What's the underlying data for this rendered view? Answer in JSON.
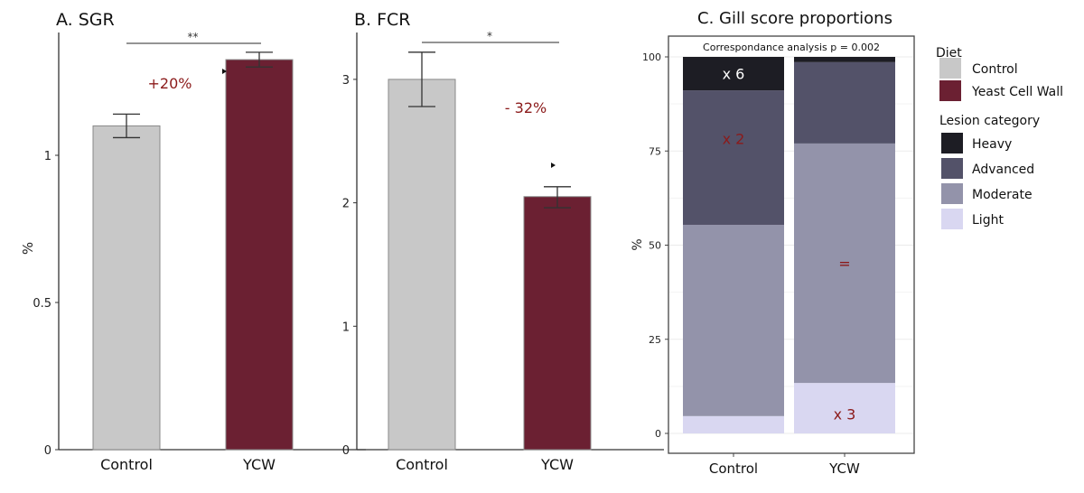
{
  "chart_data": [
    {
      "type": "bar",
      "title": "A. SGR",
      "ylabel": "%",
      "categories": [
        "Control",
        "YCW"
      ],
      "values": [
        1.1,
        1.325
      ],
      "error_low": [
        1.06,
        1.3
      ],
      "error_high": [
        1.14,
        1.35
      ],
      "ylim": [
        0,
        1.42
      ],
      "yticks": [
        "0",
        "0.5",
        "1"
      ],
      "ytick_values": [
        0,
        0.5,
        1
      ],
      "colors": [
        "#c8c8c8",
        "#6b2032"
      ],
      "significance": "**",
      "annotation": "+20%",
      "grid": false
    },
    {
      "type": "bar",
      "title": "B. FCR",
      "categories": [
        "Control",
        "YCW"
      ],
      "values": [
        3.0,
        2.05
      ],
      "error_low": [
        2.78,
        1.96
      ],
      "error_high": [
        3.22,
        2.13
      ],
      "ylim": [
        0,
        3.35
      ],
      "yticks": [
        "0",
        "1",
        "2",
        "3"
      ],
      "ytick_values": [
        0,
        1,
        2,
        3
      ],
      "colors": [
        "#c8c8c8",
        "#6b2032"
      ],
      "significance": "*",
      "annotation": "- 32%",
      "grid": false
    },
    {
      "type": "bar",
      "stacked": true,
      "title": "C. Gill score proportions",
      "ylabel": "%",
      "subtitle": "Correspondance analysis p = 0.002",
      "categories": [
        "Control",
        "YCW"
      ],
      "ylim": [
        0,
        100
      ],
      "yticks": [
        "0",
        "25",
        "50",
        "75",
        "100"
      ],
      "ytick_values": [
        0,
        25,
        50,
        75,
        100
      ],
      "series": [
        {
          "name": "Light",
          "values": [
            4.6,
            13.4
          ],
          "color": "#d9d7f1"
        },
        {
          "name": "Moderate",
          "values": [
            50.8,
            63.6
          ],
          "color": "#9393aa"
        },
        {
          "name": "Advanced",
          "values": [
            35.7,
            21.6
          ],
          "color": "#535269"
        },
        {
          "name": "Heavy",
          "values": [
            8.9,
            1.4
          ],
          "color": "#1d1d24"
        }
      ],
      "annotations": [
        {
          "text": "x 6",
          "category": "Control",
          "series": "Heavy",
          "color": "#ffffff"
        },
        {
          "text": "x 2",
          "category": "Control",
          "series": "Advanced",
          "color": "#8b1a1a"
        },
        {
          "text": "=",
          "category": "YCW",
          "series": "Moderate",
          "color": "#8b1a1a"
        },
        {
          "text": "x 3",
          "category": "YCW",
          "series": "Light",
          "color": "#8b1a1a"
        }
      ],
      "grid": true,
      "legend": {
        "position": "right",
        "diet_title": "Diet",
        "diet_items": [
          {
            "label": "Control",
            "color": "#c8c8c8"
          },
          {
            "label": "Yeast Cell Wall",
            "color": "#6b2032"
          }
        ],
        "lesion_title": "Lesion category",
        "lesion_items": [
          {
            "label": "Heavy",
            "color": "#1d1d24"
          },
          {
            "label": "Advanced",
            "color": "#535269"
          },
          {
            "label": "Moderate",
            "color": "#9393aa"
          },
          {
            "label": "Light",
            "color": "#d9d7f1"
          }
        ]
      }
    }
  ]
}
